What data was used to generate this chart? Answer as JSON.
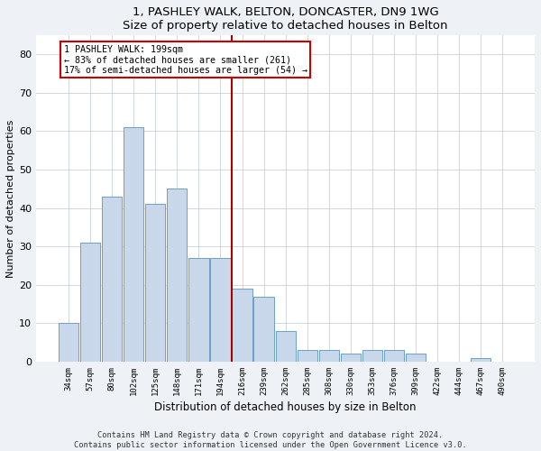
{
  "title": "1, PASHLEY WALK, BELTON, DONCASTER, DN9 1WG",
  "subtitle": "Size of property relative to detached houses in Belton",
  "xlabel": "Distribution of detached houses by size in Belton",
  "ylabel": "Number of detached properties",
  "bar_labels": [
    "34sqm",
    "57sqm",
    "80sqm",
    "102sqm",
    "125sqm",
    "148sqm",
    "171sqm",
    "194sqm",
    "216sqm",
    "239sqm",
    "262sqm",
    "285sqm",
    "308sqm",
    "330sqm",
    "353sqm",
    "376sqm",
    "399sqm",
    "422sqm",
    "444sqm",
    "467sqm",
    "490sqm"
  ],
  "bar_values": [
    10,
    31,
    43,
    61,
    41,
    45,
    27,
    27,
    19,
    17,
    8,
    3,
    3,
    2,
    3,
    3,
    2,
    0,
    0,
    1,
    0
  ],
  "bar_color": "#c8d8ea",
  "bar_edge_color": "#6aa0c8",
  "vline_x": 7.5,
  "vline_color": "#aa0000",
  "annotation_text": "1 PASHLEY WALK: 199sqm\n← 83% of detached houses are smaller (261)\n17% of semi-detached houses are larger (54) →",
  "annotation_box_color": "white",
  "annotation_box_edge": "#cc0000",
  "ylim": [
    0,
    85
  ],
  "yticks": [
    0,
    10,
    20,
    30,
    40,
    50,
    60,
    70,
    80
  ],
  "footer_line1": "Contains HM Land Registry data © Crown copyright and database right 2024.",
  "footer_line2": "Contains public sector information licensed under the Open Government Licence v3.0.",
  "bg_color": "#eef2f7",
  "plot_bg_color": "#ffffff",
  "grid_color": "#c8d0da"
}
